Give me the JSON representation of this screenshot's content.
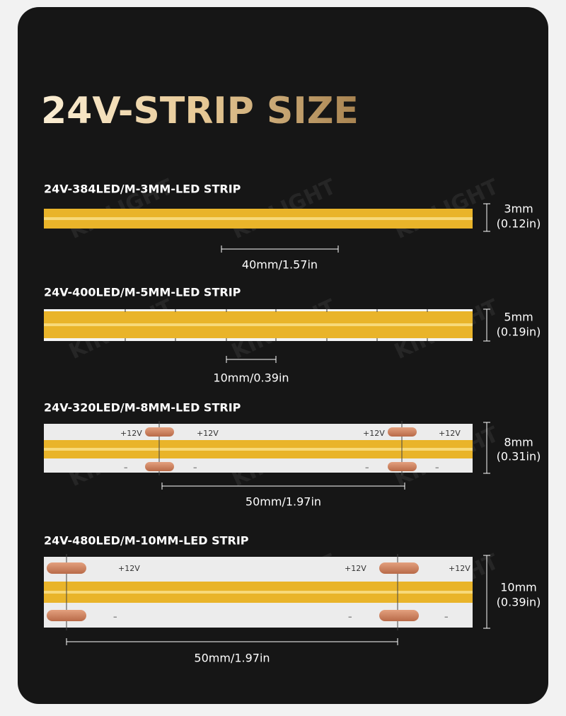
{
  "title": "24V-STRIP SIZE",
  "watermark": "KIRLIGHT",
  "strips": [
    {
      "label": "24V-384LED/M-3MM-LED STRIP",
      "width": "3mm",
      "width_in": "(0.12in)",
      "segment": "40mm/1.57in",
      "pos_labels": [],
      "neg_labels": []
    },
    {
      "label": "24V-400LED/M-5MM-LED STRIP",
      "width": "5mm",
      "width_in": "(0.19in)",
      "segment": "10mm/0.39in",
      "pos_labels": [],
      "neg_labels": []
    },
    {
      "label": "24V-320LED/M-8MM-LED STRIP",
      "width": "8mm",
      "width_in": "(0.31in)",
      "segment": "50mm/1.97in",
      "pos_labels": [
        "+12V",
        "+12V",
        "+12V",
        "+12V"
      ],
      "neg_labels": [
        "–",
        "–",
        "–",
        "–"
      ]
    },
    {
      "label": "24V-480LED/M-10MM-LED STRIP",
      "width": "10mm",
      "width_in": "(0.39in)",
      "segment": "50mm/1.97in",
      "pos_labels": [
        "+12V",
        "+12V",
        "+12V"
      ],
      "neg_labels": [
        "–",
        "–",
        "–"
      ]
    }
  ]
}
